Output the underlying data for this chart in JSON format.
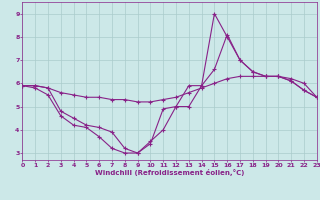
{
  "xlabel": "Windchill (Refroidissement éolien,°C)",
  "xlim": [
    0,
    23
  ],
  "ylim": [
    2.7,
    9.5
  ],
  "yticks": [
    3,
    4,
    5,
    6,
    7,
    8,
    9
  ],
  "xticks": [
    0,
    1,
    2,
    3,
    4,
    5,
    6,
    7,
    8,
    9,
    10,
    11,
    12,
    13,
    14,
    15,
    16,
    17,
    18,
    19,
    20,
    21,
    22,
    23
  ],
  "background_color": "#cce8e8",
  "grid_color": "#aacccc",
  "line_color": "#882288",
  "line1_y": [
    5.9,
    5.8,
    5.5,
    4.6,
    4.2,
    4.1,
    3.7,
    3.2,
    3.0,
    3.0,
    3.5,
    4.0,
    5.0,
    5.9,
    5.9,
    6.6,
    8.1,
    7.0,
    6.5,
    6.3,
    6.3,
    6.1,
    5.7,
    5.4
  ],
  "line2_y": [
    5.9,
    5.9,
    5.8,
    5.6,
    5.5,
    5.4,
    5.4,
    5.3,
    5.3,
    5.2,
    5.2,
    5.3,
    5.4,
    5.6,
    5.8,
    6.0,
    6.2,
    6.3,
    6.3,
    6.3,
    6.3,
    6.2,
    6.0,
    5.4
  ],
  "line3_y": [
    5.9,
    5.9,
    5.8,
    4.8,
    4.5,
    4.2,
    4.1,
    3.9,
    3.2,
    3.0,
    3.4,
    4.9,
    5.0,
    5.0,
    5.9,
    9.0,
    8.0,
    7.0,
    6.5,
    6.3,
    6.3,
    6.1,
    5.7,
    5.4
  ]
}
